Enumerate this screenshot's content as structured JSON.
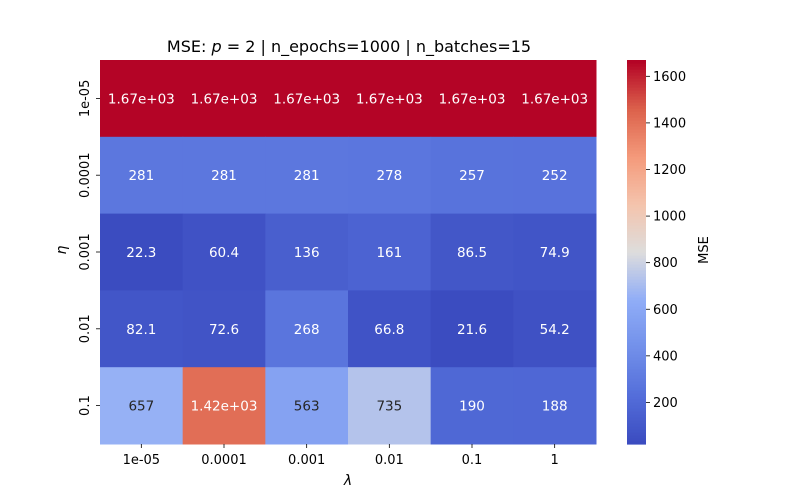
{
  "chart_data": {
    "type": "heatmap",
    "title": {
      "prefix": "MSE: ",
      "p_symbol": "p",
      "p_equals": " = ",
      "p_value": "2",
      "suffix": " | n_epochs=1000 | n_batches=15"
    },
    "xlabel": "λ",
    "ylabel": "η",
    "colorbar_label": "MSE",
    "colormap": "coolwarm",
    "x_categories": [
      "1e-05",
      "0.0001",
      "0.001",
      "0.01",
      "0.1",
      "1"
    ],
    "y_categories": [
      "1e-05",
      "0.0001",
      "0.001",
      "0.01",
      "0.1"
    ],
    "values": [
      [
        1670,
        1670,
        1670,
        1670,
        1670,
        1670
      ],
      [
        281,
        281,
        281,
        278,
        257,
        252
      ],
      [
        22.3,
        60.4,
        136,
        161,
        86.5,
        74.9
      ],
      [
        82.1,
        72.6,
        268,
        66.8,
        21.6,
        54.2
      ],
      [
        657,
        1420,
        563,
        735,
        190,
        188
      ]
    ],
    "annotations": [
      [
        "1.67e+03",
        "1.67e+03",
        "1.67e+03",
        "1.67e+03",
        "1.67e+03",
        "1.67e+03"
      ],
      [
        "281",
        "281",
        "281",
        "278",
        "257",
        "252"
      ],
      [
        "22.3",
        "60.4",
        "136",
        "161",
        "86.5",
        "74.9"
      ],
      [
        "82.1",
        "72.6",
        "268",
        "66.8",
        "21.6",
        "54.2"
      ],
      [
        "657",
        "1.42e+03",
        "563",
        "735",
        "190",
        "188"
      ]
    ],
    "colorbar_range": [
      21.6,
      1670
    ],
    "colorbar_ticks": [
      200,
      400,
      600,
      800,
      1000,
      1200,
      1400,
      1600
    ]
  }
}
